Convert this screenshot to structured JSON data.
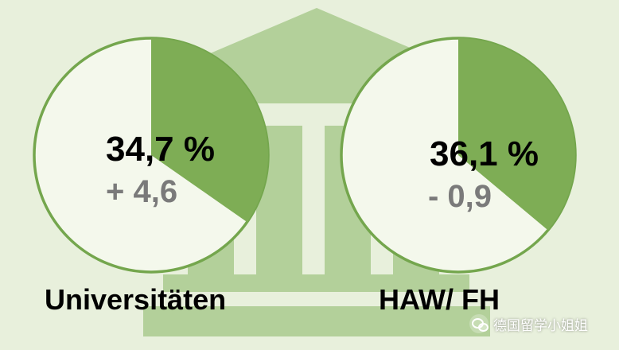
{
  "chart_data": {
    "type": "pie",
    "charts": [
      {
        "category": "Universitäten",
        "value_percent": 34.7,
        "value_label": "34,7 %",
        "change": 4.6,
        "change_label": "+ 4,6"
      },
      {
        "category": "HAW/ FH",
        "value_percent": 36.1,
        "value_label": "36,1 %",
        "change": -0.9,
        "change_label": "- 0,9"
      }
    ]
  },
  "colors": {
    "background": "#e8f0dc",
    "building": "#b3d09a",
    "slice_fill": "#7ead55",
    "circle_outline": "#74a64d",
    "circle_fill": "#f4f8ec",
    "change_text": "#7a7a7a"
  },
  "watermark": {
    "icon": "wechat-icon",
    "text": "德国留学小姐姐"
  }
}
